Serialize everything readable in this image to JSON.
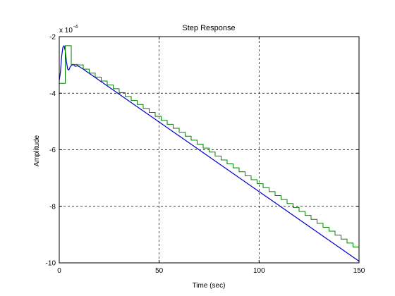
{
  "chart_data": {
    "type": "line",
    "title": "Step Response",
    "xlabel": "Time (sec)",
    "ylabel": "Amplitude",
    "xlim": [
      0,
      150
    ],
    "ylim": [
      -10,
      -2
    ],
    "y_multiplier_base": "x 10",
    "y_multiplier_exponent": "-4",
    "xticks": [
      "0",
      "50",
      "100",
      "150"
    ],
    "yticks": [
      "-10",
      "-8",
      "-6",
      "-4",
      "-2"
    ],
    "xtick_values": [
      0,
      50,
      100,
      150
    ],
    "ytick_values": [
      -10,
      -8,
      -6,
      -4,
      -2
    ],
    "grid": true,
    "colors": {
      "continuous": "#0000cc",
      "discrete": "#008000",
      "grid": "#000000"
    },
    "series": [
      {
        "kind": "continuous",
        "x": [
          0,
          0.6,
          1.2,
          1.8,
          2.4,
          3.0,
          3.6,
          4.2,
          4.8,
          5.4,
          6.0,
          7.0,
          8.0,
          9.0,
          10.0,
          12.0,
          150.0
        ],
        "y": [
          -3.55,
          -3.25,
          -2.7,
          -2.38,
          -2.32,
          -2.5,
          -2.88,
          -3.15,
          -3.18,
          -3.08,
          -3.02,
          -2.98,
          -3.05,
          -3.03,
          -3.06,
          -3.15,
          -9.94
        ]
      },
      {
        "kind": "discrete",
        "sample_time": 3,
        "x": [
          0,
          3,
          6,
          9,
          12,
          15,
          18,
          21,
          24,
          27,
          30,
          33,
          36,
          39,
          42,
          45,
          48,
          51,
          54,
          57,
          60,
          63,
          66,
          69,
          72,
          75,
          78,
          81,
          84,
          87,
          90,
          93,
          96,
          99,
          102,
          105,
          108,
          111,
          114,
          117,
          120,
          123,
          126,
          129,
          132,
          135,
          138,
          141,
          144,
          147,
          150
        ],
        "y": [
          -3.65,
          -2.32,
          -2.98,
          -3.0,
          -3.15,
          -3.29,
          -3.43,
          -3.57,
          -3.71,
          -3.84,
          -3.98,
          -4.12,
          -4.26,
          -4.4,
          -4.54,
          -4.68,
          -4.82,
          -4.96,
          -5.1,
          -5.24,
          -5.38,
          -5.52,
          -5.66,
          -5.8,
          -5.94,
          -6.08,
          -6.22,
          -6.36,
          -6.5,
          -6.64,
          -6.78,
          -6.92,
          -7.06,
          -7.2,
          -7.34,
          -7.48,
          -7.62,
          -7.76,
          -7.9,
          -8.04,
          -8.18,
          -8.32,
          -8.46,
          -8.6,
          -8.74,
          -8.88,
          -9.02,
          -9.16,
          -9.3,
          -9.44,
          -9.58
        ]
      }
    ]
  }
}
